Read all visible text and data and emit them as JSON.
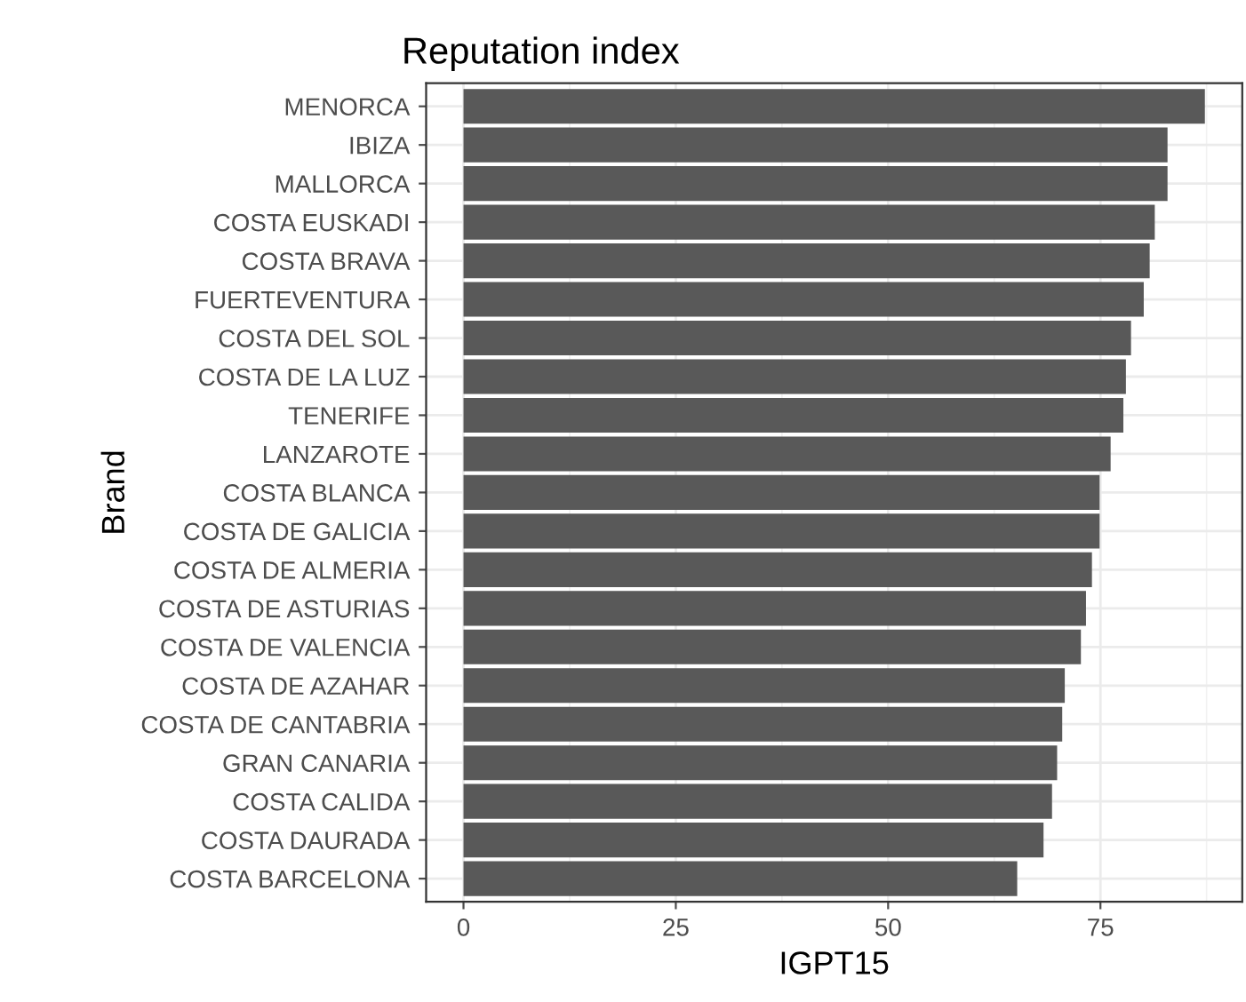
{
  "chart_data": {
    "type": "bar",
    "orientation": "horizontal",
    "title": "Reputation index",
    "xlabel": "IGPT15",
    "ylabel": "Brand",
    "categories": [
      "MENORCA",
      "IBIZA",
      "MALLORCA",
      "COSTA EUSKADI",
      "COSTA BRAVA",
      "FUERTEVENTURA",
      "COSTA DEL SOL",
      "COSTA DE LA LUZ",
      "TENERIFE",
      "LANZAROTE",
      "COSTA BLANCA",
      "COSTA DE GALICIA",
      "COSTA DE ALMERIA",
      "COSTA DE ASTURIAS",
      "COSTA DE VALENCIA",
      "COSTA DE AZAHAR",
      "COSTA DE CANTABRIA",
      "GRAN CANARIA",
      "COSTA CALIDA",
      "COSTA DAURADA",
      "COSTA BARCELONA"
    ],
    "values": [
      87.3,
      82.9,
      82.9,
      81.4,
      80.8,
      80.1,
      78.6,
      78.0,
      77.7,
      76.2,
      74.9,
      74.9,
      74.0,
      73.3,
      72.7,
      70.8,
      70.5,
      69.9,
      69.3,
      68.3,
      65.2
    ],
    "color": "#595959",
    "xlim": [
      -4.4,
      91.7
    ],
    "xticks": [
      0,
      25,
      50,
      75
    ],
    "grid": true
  }
}
